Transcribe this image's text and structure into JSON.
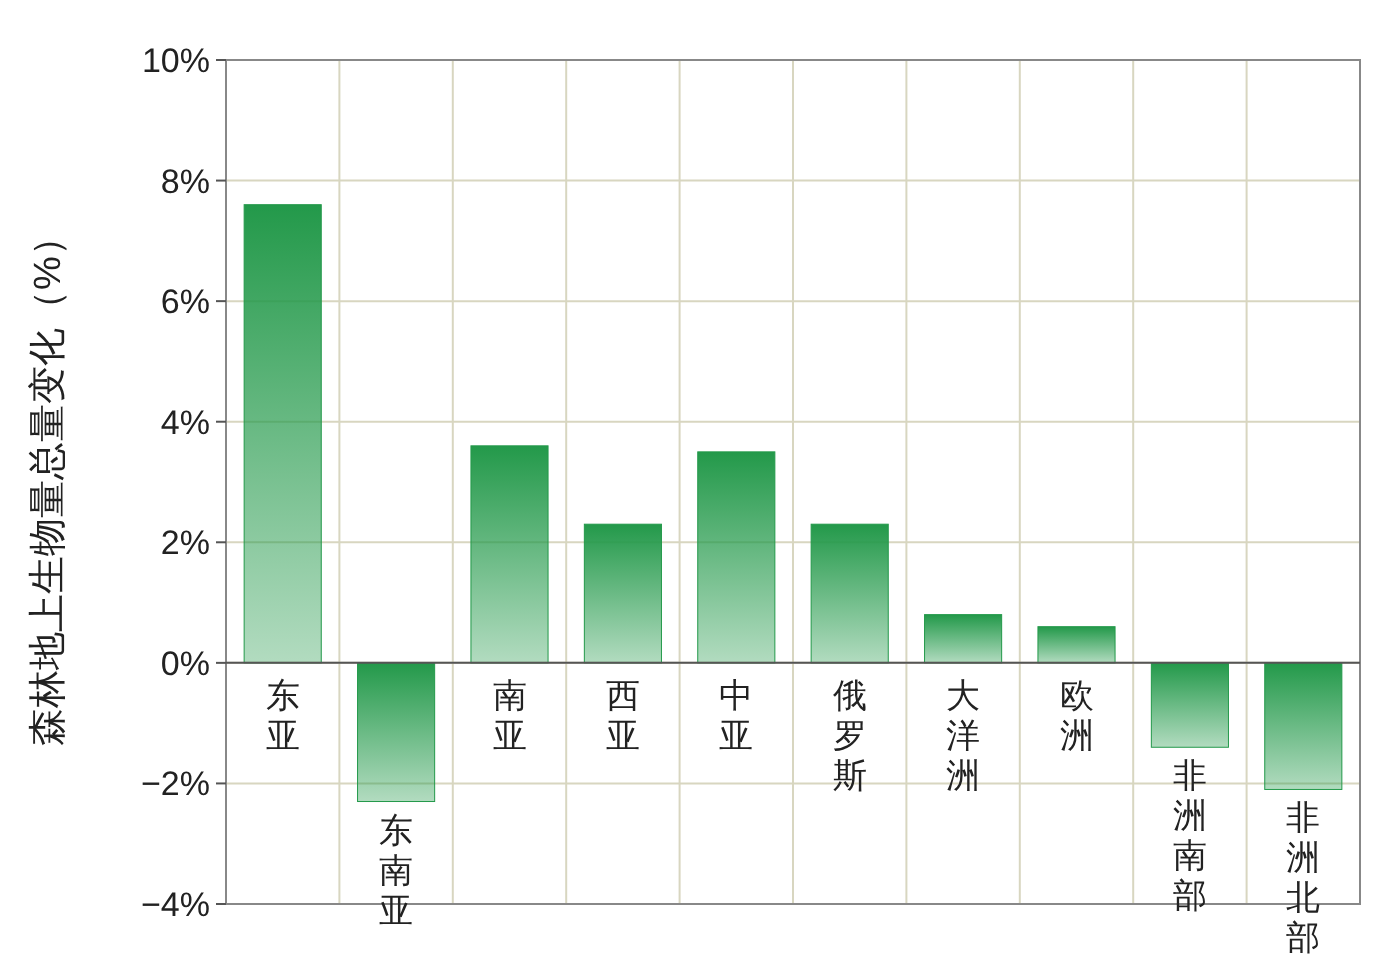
{
  "chart_data": {
    "type": "bar",
    "ylabel": "森林地上生物量总量变化（%）",
    "categories": [
      "东亚",
      "东南亚",
      "南亚",
      "西亚",
      "中亚",
      "俄罗斯",
      "大洋洲",
      "欧洲",
      "非洲南部",
      "非洲北部"
    ],
    "values": [
      7.6,
      -2.3,
      3.6,
      2.3,
      3.5,
      2.3,
      0.8,
      0.6,
      -1.4,
      -2.1
    ],
    "color": "#23994a",
    "ylim": [
      -4,
      10
    ],
    "yticks": [
      {
        "value": -4,
        "label": "−4%"
      },
      {
        "value": -2,
        "label": "−2%"
      },
      {
        "value": 0,
        "label": "0%"
      },
      {
        "value": 2,
        "label": "2%"
      },
      {
        "value": 4,
        "label": "4%"
      },
      {
        "value": 6,
        "label": "6%"
      },
      {
        "value": 8,
        "label": "8%"
      },
      {
        "value": 10,
        "label": "10%"
      }
    ],
    "grid": true
  }
}
